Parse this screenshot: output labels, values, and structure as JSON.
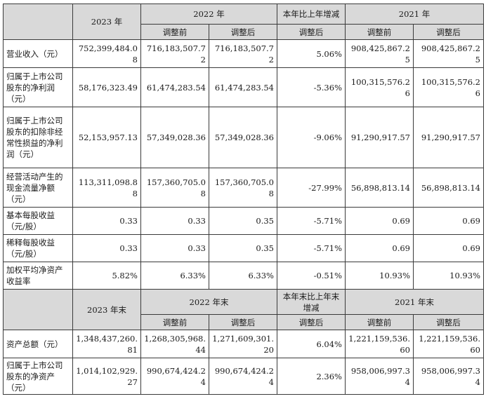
{
  "header1": {
    "year2023": "2023 年",
    "year2022": "2022 年",
    "change": "本年比上年增减",
    "year2021": "2021 年"
  },
  "subheader1": {
    "before_2022": "调整前",
    "after_2022": "调整后",
    "change_after": "调整后",
    "before_2021": "调整前",
    "after_2021": "调整后"
  },
  "rows1": [
    {
      "label": "营业收入（元）",
      "v2023": "752,399,484.08",
      "b2022": "716,183,507.72",
      "a2022": "716,183,507.72",
      "chg": "5.06%",
      "b2021": "908,425,867.25",
      "a2021": "908,425,867.25"
    },
    {
      "label": "归属于上市公司股东的净利润（元）",
      "v2023": "58,176,323.49",
      "b2022": "61,474,283.54",
      "a2022": "61,474,283.54",
      "chg": "-5.36%",
      "b2021": "100,315,576.26",
      "a2021": "100,315,576.26"
    },
    {
      "label": "归属于上市公司股东的扣除非经常性损益的净利润（元）",
      "v2023": "52,153,957.13",
      "b2022": "57,349,028.36",
      "a2022": "57,349,028.36",
      "chg": "-9.06%",
      "b2021": "91,290,917.57",
      "a2021": "91,290,917.57"
    },
    {
      "label": "经营活动产生的现金流量净额（元）",
      "v2023": "113,311,098.88",
      "b2022": "157,360,705.08",
      "a2022": "157,360,705.08",
      "chg": "-27.99%",
      "b2021": "56,898,813.14",
      "a2021": "56,898,813.14"
    },
    {
      "label": "基本每股收益（元/股）",
      "v2023": "0.33",
      "b2022": "0.33",
      "a2022": "0.35",
      "chg": "-5.71%",
      "b2021": "0.69",
      "a2021": "0.69"
    },
    {
      "label": "稀释每股收益（元/股）",
      "v2023": "0.33",
      "b2022": "0.33",
      "a2022": "0.35",
      "chg": "-5.71%",
      "b2021": "0.69",
      "a2021": "0.69"
    },
    {
      "label": "加权平均净资产收益率",
      "v2023": "5.82%",
      "b2022": "6.33%",
      "a2022": "6.33%",
      "chg": "-0.51%",
      "b2021": "10.93%",
      "a2021": "10.93%"
    }
  ],
  "header2": {
    "year2023": "2023 年末",
    "year2022": "2022 年末",
    "change": "本年末比上年末增减",
    "year2021": "2021 年末"
  },
  "subheader2": {
    "before_2022": "调整前",
    "after_2022": "调整后",
    "change_after": "调整后",
    "before_2021": "调整前",
    "after_2021": "调整后"
  },
  "rows2": [
    {
      "label": "资产总额（元）",
      "v2023": "1,348,437,260.81",
      "b2022": "1,268,305,968.44",
      "a2022": "1,271,609,301.20",
      "chg": "6.04%",
      "b2021": "1,221,159,536.60",
      "a2021": "1,221,159,536.60"
    },
    {
      "label": "归属于上市公司股东的净资产（元）",
      "v2023": "1,014,102,929.27",
      "b2022": "990,674,424.24",
      "a2022": "990,674,424.24",
      "chg": "2.36%",
      "b2021": "958,006,997.34",
      "a2021": "958,006,997.34"
    }
  ]
}
